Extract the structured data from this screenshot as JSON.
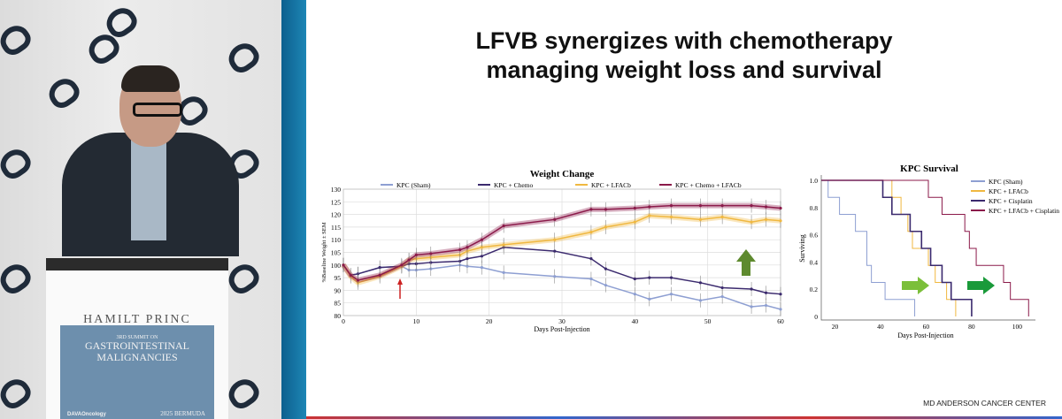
{
  "slide": {
    "title_line1": "LFVB synergizes with chemotherapy",
    "title_line2": "managing weight loss and survival",
    "footer": "MD ANDERSON CANCER CENTER"
  },
  "podium": {
    "brand": "HAMILT   PRINC   ",
    "sign_top": "3RD SUMMIT ON",
    "sign_line1": "GASTROINTESTINAL",
    "sign_line2": "MALIGNANCIES",
    "sign_dava": "DAVAOncology",
    "sign_bermuda": "2025 BERMUDA"
  },
  "colors": {
    "sham": "#8e9fd2",
    "chemo": "#3b2a6e",
    "lfacb": "#f0b840",
    "combo": "#8b1a4a",
    "arrow_green": "#5e8a2e"
  },
  "chart_data": [
    {
      "type": "line",
      "title": "Weight Change",
      "xlabel": "Days Post-Injection",
      "ylabel": "%Baseline Weight ± SEM",
      "xlim": [
        0,
        60
      ],
      "ylim": [
        80,
        130
      ],
      "xticks": [
        0,
        10,
        20,
        30,
        40,
        50,
        60
      ],
      "yticks": [
        80,
        85,
        90,
        95,
        100,
        105,
        110,
        115,
        120,
        125,
        130
      ],
      "x": [
        0,
        1,
        2,
        5,
        8,
        9,
        10,
        12,
        16,
        17,
        19,
        22,
        29,
        34,
        36,
        40,
        42,
        45,
        49,
        52,
        56,
        58,
        60
      ],
      "series": [
        {
          "name": "KPC (Sham)",
          "key": "sham",
          "values": [
            100,
            96,
            96.5,
            99,
            99.5,
            98,
            98,
            98.5,
            100,
            99.5,
            99,
            97,
            95.5,
            94.5,
            92,
            88.5,
            86.5,
            88.5,
            86,
            87.5,
            83.5,
            84,
            82.5
          ]
        },
        {
          "name": "KPC + Chemo",
          "key": "chemo",
          "values": [
            100,
            96,
            96.5,
            99,
            99.5,
            100.5,
            100.5,
            101,
            101.5,
            102.5,
            103.5,
            107,
            105.5,
            102.5,
            98.5,
            94.5,
            95,
            95,
            93,
            91,
            90.5,
            89,
            88.5
          ]
        },
        {
          "name": "KPC + LFACb",
          "key": "lfacb",
          "values": [
            100,
            95.5,
            93,
            95.5,
            99.5,
            102,
            102.5,
            103,
            104,
            105.5,
            107,
            108,
            110,
            113,
            115,
            117,
            119.5,
            119,
            118,
            119,
            117,
            118,
            117.5
          ]
        },
        {
          "name": "KPC + Chemo + LFACb",
          "key": "combo",
          "values": [
            100,
            96,
            94,
            96,
            100,
            102,
            104,
            104.5,
            106,
            107,
            110,
            115.5,
            118,
            122,
            122,
            122.5,
            123,
            123.5,
            123.5,
            123.5,
            123.5,
            123,
            122.5
          ]
        }
      ],
      "grid": true,
      "legend": "top"
    },
    {
      "type": "line",
      "title": "KPC Survival",
      "xlabel": "Days Post-Injection",
      "ylabel": "Surviving",
      "xlim": [
        14,
        108
      ],
      "ylim": [
        0,
        1
      ],
      "xticks": [
        20,
        40,
        60,
        80,
        100
      ],
      "yticks": [
        0,
        0.2,
        0.4,
        0.6,
        0.8,
        1.0
      ],
      "legend": "top-right",
      "series": [
        {
          "name": "KPC (Sham)",
          "key": "sham",
          "steps": [
            [
              14,
              1
            ],
            [
              17,
              0.875
            ],
            [
              22,
              0.75
            ],
            [
              29,
              0.625
            ],
            [
              34,
              0.375
            ],
            [
              36,
              0.25
            ],
            [
              42,
              0.125
            ],
            [
              55,
              0
            ]
          ]
        },
        {
          "name": "KPC + LFACb",
          "key": "lfacb",
          "steps": [
            [
              14,
              1
            ],
            [
              45,
              0.875
            ],
            [
              49,
              0.75
            ],
            [
              52,
              0.625
            ],
            [
              54,
              0.5
            ],
            [
              61,
              0.375
            ],
            [
              64,
              0.25
            ],
            [
              69,
              0.125
            ],
            [
              73,
              0
            ]
          ]
        },
        {
          "name": "KPC + Cisplatin",
          "key": "chemo",
          "steps": [
            [
              14,
              1
            ],
            [
              41,
              0.875
            ],
            [
              45,
              0.75
            ],
            [
              53,
              0.625
            ],
            [
              58,
              0.5
            ],
            [
              62,
              0.375
            ],
            [
              67,
              0.25
            ],
            [
              71,
              0.125
            ],
            [
              75,
              0.125
            ],
            [
              80,
              0
            ]
          ]
        },
        {
          "name": "KPC + LFACb + Cisplatin",
          "key": "combo",
          "steps": [
            [
              14,
              1
            ],
            [
              61,
              0.875
            ],
            [
              67,
              0.75
            ],
            [
              77,
              0.625
            ],
            [
              79,
              0.5
            ],
            [
              82,
              0.375
            ],
            [
              94,
              0.25
            ],
            [
              97,
              0.125
            ],
            [
              105,
              0
            ]
          ]
        }
      ]
    }
  ]
}
